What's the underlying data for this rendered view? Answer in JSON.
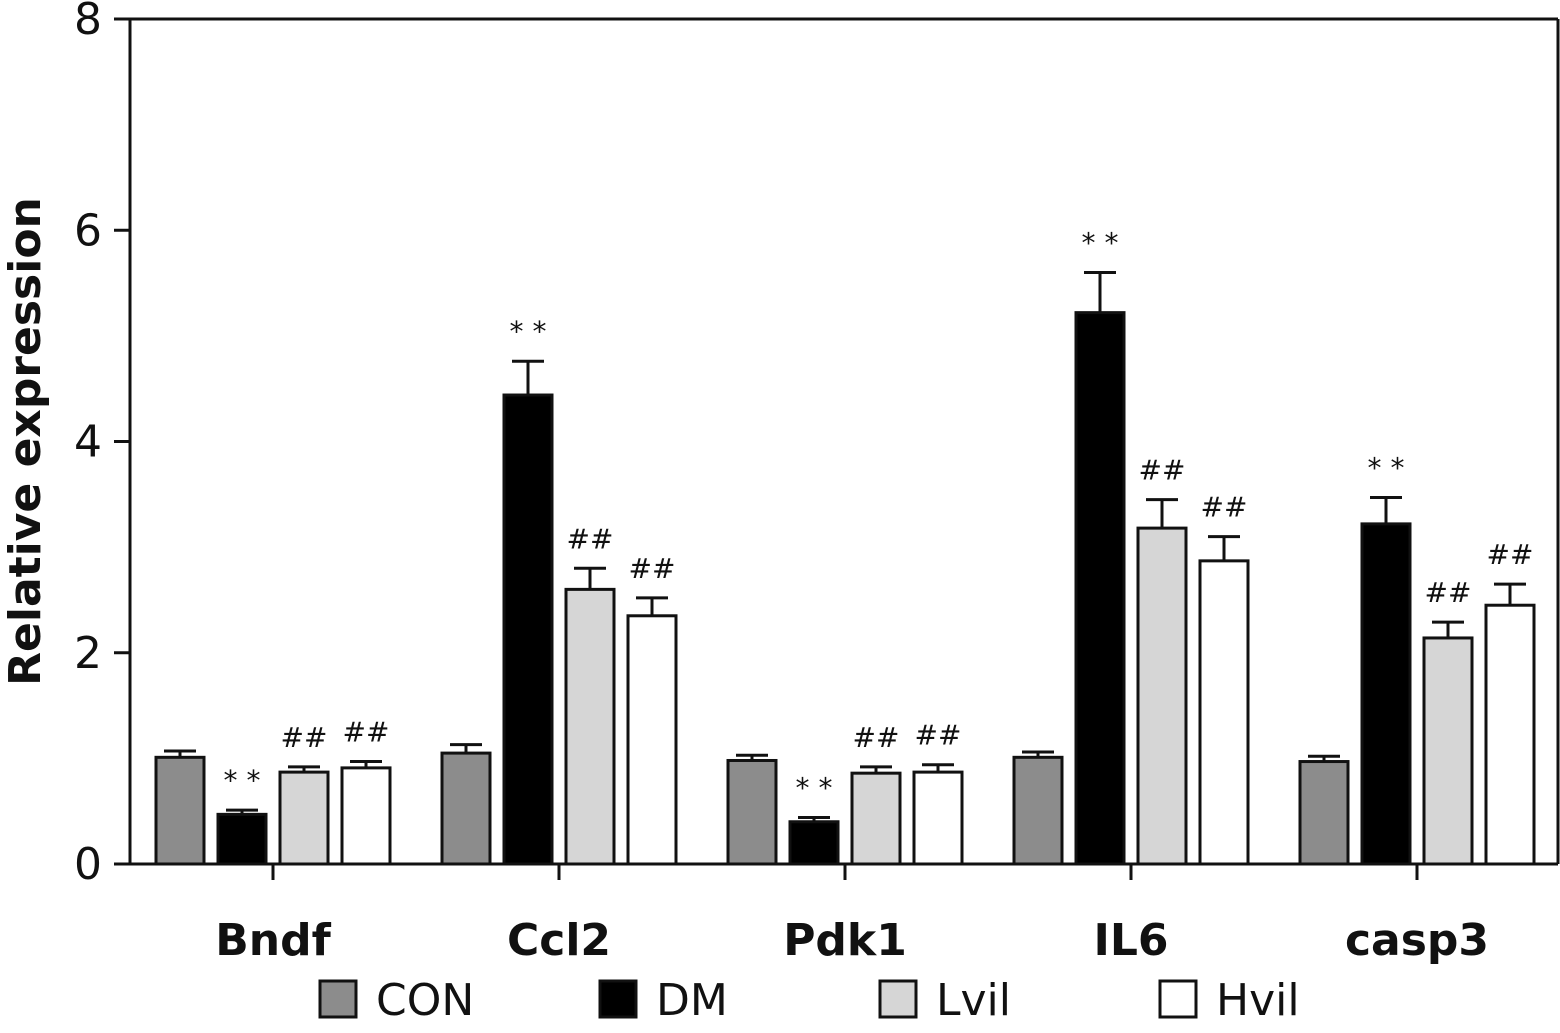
{
  "chart_data": {
    "type": "bar",
    "ylabel": "Relative expression",
    "ylim": [
      0,
      8
    ],
    "yticks": [
      0,
      2,
      4,
      6,
      8
    ],
    "categories": [
      "Bndf",
      "Ccl2",
      "Pdk1",
      "IL6",
      "casp3"
    ],
    "series": [
      {
        "name": "CON",
        "color": "#8c8c8c",
        "values": [
          1.01,
          1.05,
          0.98,
          1.01,
          0.97
        ],
        "errors": [
          0.06,
          0.08,
          0.05,
          0.05,
          0.05
        ],
        "annotations": [
          "",
          "",
          "",
          "",
          ""
        ]
      },
      {
        "name": "DM",
        "color": "#000000",
        "values": [
          0.47,
          4.44,
          0.4,
          5.22,
          3.22
        ],
        "errors": [
          0.04,
          0.32,
          0.04,
          0.38,
          0.25
        ],
        "annotations": [
          "* *",
          "* *",
          "* *",
          "* *",
          "* *"
        ]
      },
      {
        "name": "Lvil",
        "color": "#d6d6d6",
        "values": [
          0.87,
          2.6,
          0.86,
          3.18,
          2.14
        ],
        "errors": [
          0.05,
          0.2,
          0.06,
          0.27,
          0.15
        ],
        "annotations": [
          "##",
          "##",
          "##",
          "##",
          "##"
        ]
      },
      {
        "name": "Hvil",
        "color": "#ffffff",
        "values": [
          0.91,
          2.35,
          0.87,
          2.87,
          2.45
        ],
        "errors": [
          0.06,
          0.17,
          0.07,
          0.23,
          0.2
        ],
        "annotations": [
          "##",
          "##",
          "##",
          "##",
          "##"
        ]
      }
    ],
    "grid": false,
    "legend_position": "bottom"
  }
}
